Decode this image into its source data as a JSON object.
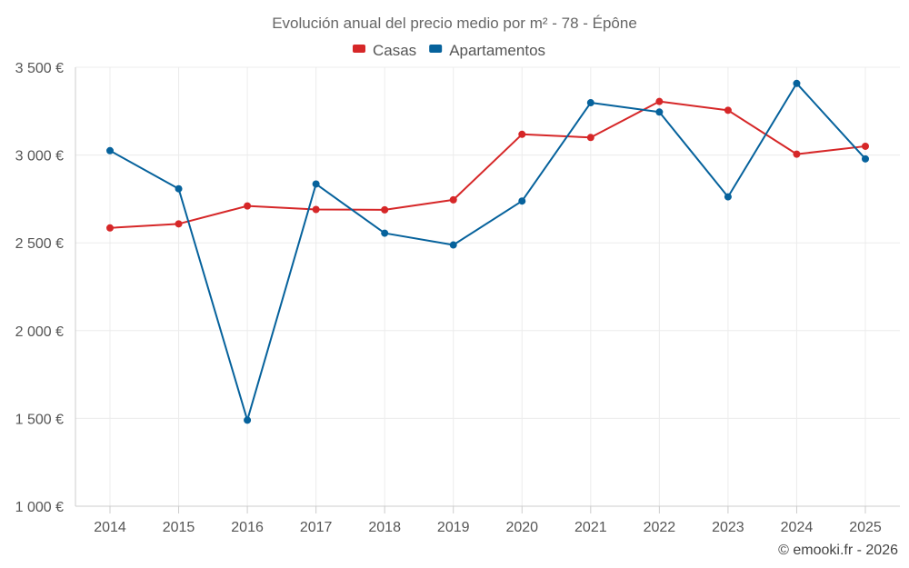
{
  "chart_data": {
    "type": "line",
    "title": "Evolución anual del precio medio por m² - 78 - Épône",
    "categories": [
      "2014",
      "2015",
      "2016",
      "2017",
      "2018",
      "2019",
      "2020",
      "2021",
      "2022",
      "2023",
      "2024",
      "2025"
    ],
    "series": [
      {
        "name": "Casas",
        "color": "#d62728",
        "values": [
          2585,
          2608,
          2710,
          2690,
          2688,
          2745,
          3118,
          3100,
          3305,
          3255,
          3005,
          3050
        ]
      },
      {
        "name": "Apartamentos",
        "color": "#06629c",
        "values": [
          3025,
          2808,
          1490,
          2835,
          2555,
          2488,
          2738,
          3298,
          3245,
          2762,
          3408,
          2978
        ]
      }
    ],
    "ylim": [
      1000,
      3500
    ],
    "yticks": [
      1000,
      1500,
      2000,
      2500,
      3000,
      3500
    ],
    "ytick_labels": [
      "1 000 €",
      "1 500 €",
      "2 000 €",
      "2 500 €",
      "3 000 €",
      "3 500 €"
    ],
    "xlabel": "",
    "ylabel": "",
    "legend_position": "top-center",
    "grid": true
  },
  "credit": "© emooki.fr - 2026"
}
